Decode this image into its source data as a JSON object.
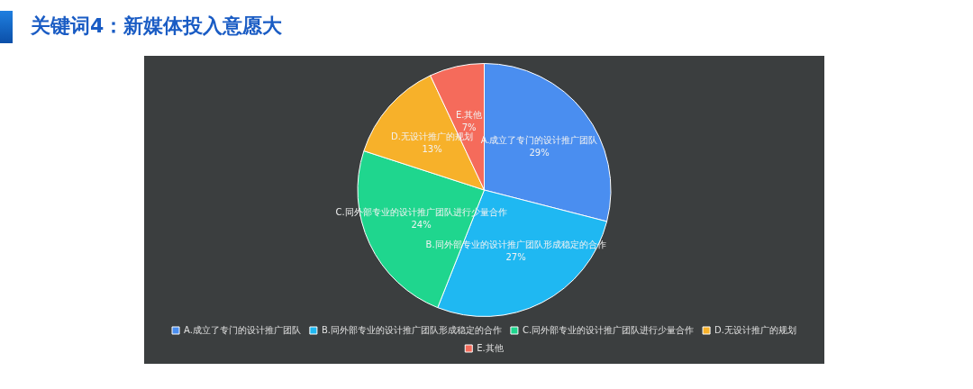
{
  "chart_data": {
    "type": "pie",
    "title": "关键词4：新媒体投入意愿大",
    "categories": [
      "A.成立了专门的设计推广团队",
      "B.同外部专业的设计推广团队形成稳定的合作",
      "C.同外部专业的设计推广团队进行少量合作",
      "D.无设计推广的规划",
      "E.其他"
    ],
    "values": [
      29,
      27,
      24,
      13,
      7
    ],
    "value_labels": [
      "29%",
      "27%",
      "24%",
      "13%",
      "7%"
    ],
    "colors": [
      "#4a8ef0",
      "#1fb8f2",
      "#1fd68e",
      "#f7b12a",
      "#f56b5b"
    ],
    "legend": "bottom"
  }
}
